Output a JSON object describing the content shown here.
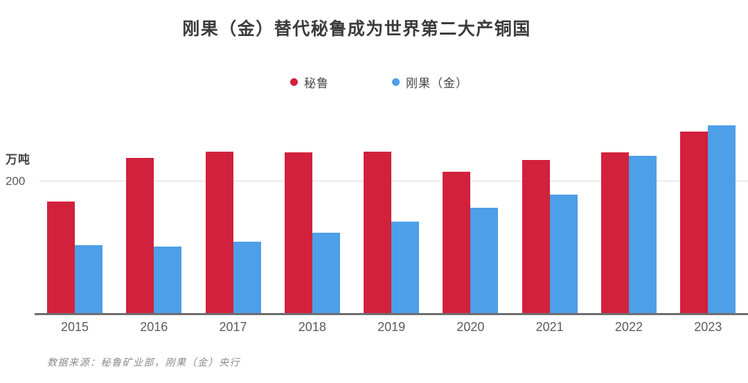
{
  "chart_data": {
    "type": "bar",
    "title": "刚果（金）替代秘鲁成为世界第二大产铜国",
    "unit_label": "万吨",
    "categories": [
      "2015",
      "2016",
      "2017",
      "2018",
      "2019",
      "2020",
      "2021",
      "2022",
      "2023"
    ],
    "series": [
      {
        "name": "秘鲁",
        "color": "#d2213c",
        "values": [
          170,
          235,
          245,
          244,
          245,
          215,
          232,
          244,
          275
        ]
      },
      {
        "name": "刚果（金）",
        "color": "#4d9fe8",
        "values": [
          104,
          102,
          109,
          123,
          140,
          160,
          180,
          239,
          284
        ]
      }
    ],
    "y_gridlines": [
      200
    ],
    "ylim": [
      0,
      300
    ],
    "grid": "on",
    "legend_position": "top-center",
    "source": "数据来源：秘鲁矿业部，刚果（金）央行"
  }
}
